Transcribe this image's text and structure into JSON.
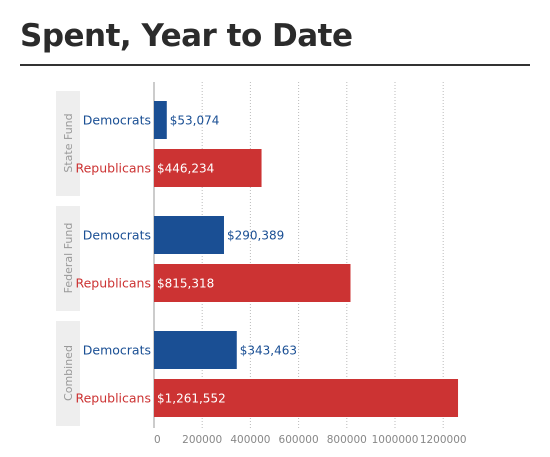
{
  "title": "Spent, Year to Date",
  "colors": {
    "Democrats": "#1a4f94",
    "Republicans": "#cc3333",
    "band": "#eeeeee",
    "grid": "#bbbbbb"
  },
  "chart_data": {
    "type": "bar",
    "orientation": "horizontal",
    "title": "Spent, Year to Date",
    "groups": [
      {
        "name": "State Fund",
        "bars": [
          {
            "series": "Democrats",
            "value": 53074,
            "label": "$53,074"
          },
          {
            "series": "Republicans",
            "value": 446234,
            "label": "$446,234"
          }
        ]
      },
      {
        "name": "Federal Fund",
        "bars": [
          {
            "series": "Democrats",
            "value": 290389,
            "label": "$290,389"
          },
          {
            "series": "Republicans",
            "value": 815318,
            "label": "$815,318"
          }
        ]
      },
      {
        "name": "Combined",
        "bars": [
          {
            "series": "Democrats",
            "value": 343463,
            "label": "$343,463"
          },
          {
            "series": "Republicans",
            "value": 1261552,
            "label": "$1,261,552"
          }
        ]
      }
    ],
    "xticks": [
      0,
      200000,
      400000,
      600000,
      800000,
      1000000,
      1200000
    ],
    "xlim": [
      0,
      1250000
    ],
    "grid": "vertical dotted"
  }
}
